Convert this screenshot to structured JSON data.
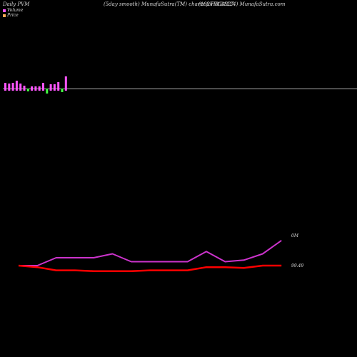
{
  "header": {
    "left": "Daily PVM",
    "center": "(5day smooth) MunafaSutra(TM) charts for 804927",
    "right": "(182TB121224) MunafaSutra.com"
  },
  "legend": [
    {
      "label": "Volume",
      "color": "#ff55ff"
    },
    {
      "label": "Price",
      "color": "#ffaa55"
    }
  ],
  "colors": {
    "volume_up": "#ff55ff",
    "volume_down": "#44ff44",
    "volume_base": "#aaaaaa",
    "price_line": "#ff0000",
    "volume_line": "#cc33cc",
    "label": "#dddddd"
  },
  "chart_data": [
    {
      "type": "bar",
      "title": "Volume bars",
      "bars": [
        {
          "value": 8,
          "direction": "up"
        },
        {
          "value": 7,
          "direction": "up"
        },
        {
          "value": 8,
          "direction": "up"
        },
        {
          "value": 11,
          "direction": "up"
        },
        {
          "value": 7,
          "direction": "up"
        },
        {
          "value": 4,
          "direction": "up"
        },
        {
          "value": -4,
          "direction": "down"
        },
        {
          "value": 3,
          "direction": "up"
        },
        {
          "value": 3,
          "direction": "up"
        },
        {
          "value": 3,
          "direction": "up"
        },
        {
          "value": 8,
          "direction": "up"
        },
        {
          "value": -7,
          "direction": "down"
        },
        {
          "value": 6,
          "direction": "up"
        },
        {
          "value": 6,
          "direction": "up"
        },
        {
          "value": 9,
          "direction": "up"
        },
        {
          "value": -5,
          "direction": "down"
        },
        {
          "value": 17,
          "direction": "up"
        }
      ]
    },
    {
      "type": "line",
      "series": [
        {
          "values": [
            30,
            30,
            40,
            40,
            40,
            45,
            35,
            35,
            35,
            35,
            48,
            35,
            37,
            45,
            62
          ],
          "color": "#cc33cc"
        },
        {
          "values": [
            30,
            28,
            24,
            24,
            23,
            23,
            23,
            24,
            24,
            24,
            28,
            28,
            27,
            30,
            30
          ],
          "color": "#ff0000"
        }
      ],
      "labels": {
        "volume": "0M",
        "price": "99.49"
      }
    }
  ]
}
